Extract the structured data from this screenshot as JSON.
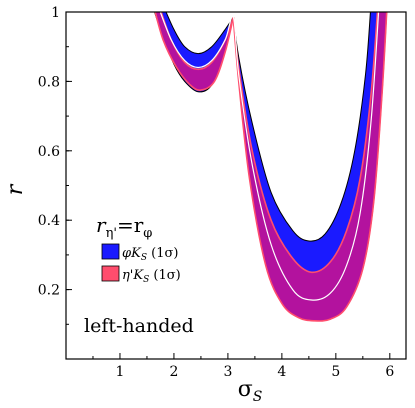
{
  "chart_data": {
    "type": "area",
    "xlabel": "σ",
    "xlabel_sub": "S",
    "ylabel": "r",
    "xlim": [
      0,
      6.3
    ],
    "ylim": [
      0,
      1
    ],
    "xticks": [
      "1",
      "2",
      "3",
      "4",
      "5",
      "6"
    ],
    "yticks": [
      "0.2",
      "0.4",
      "0.6",
      "0.8",
      "1"
    ],
    "legend": {
      "title_main": "r",
      "title_sub1": "η'",
      "title_eq": "=r",
      "title_sub2": "φ",
      "placement": "middle-left",
      "entries": [
        {
          "label_main": "φK",
          "label_sub": "S",
          "label_tail": " (1σ)",
          "color": "#1a1aff"
        },
        {
          "label_main": "η'K",
          "label_sub": "S",
          "label_tail": " (1σ)",
          "color": "#ff4d6d"
        }
      ]
    },
    "annotation": "left-handed",
    "series": [
      {
        "name": "φK_S (1σ)",
        "color": "#1a1aff",
        "left_lobe": {
          "upper": [
            [
              1.8,
              1.02
            ],
            [
              2.0,
              0.95
            ],
            [
              2.2,
              0.9
            ],
            [
              2.45,
              0.88
            ],
            [
              2.7,
              0.9
            ],
            [
              2.95,
              0.95
            ],
            [
              3.1,
              0.985
            ]
          ],
          "lower": [
            [
              1.6,
              1.02
            ],
            [
              1.75,
              0.95
            ],
            [
              2.0,
              0.85
            ],
            [
              2.2,
              0.8
            ],
            [
              2.45,
              0.77
            ],
            [
              2.7,
              0.79
            ],
            [
              2.9,
              0.87
            ],
            [
              3.1,
              0.985
            ]
          ]
        },
        "right_lobe": {
          "upper": [
            [
              3.1,
              0.985
            ],
            [
              3.2,
              0.87
            ],
            [
              3.45,
              0.68
            ],
            [
              3.8,
              0.48
            ],
            [
              4.2,
              0.37
            ],
            [
              4.5,
              0.34
            ],
            [
              4.8,
              0.36
            ],
            [
              5.1,
              0.45
            ],
            [
              5.35,
              0.6
            ],
            [
              5.55,
              0.82
            ],
            [
              5.65,
              1.02
            ]
          ],
          "lower": [
            [
              3.1,
              0.985
            ],
            [
              3.2,
              0.82
            ],
            [
              3.4,
              0.55
            ],
            [
              3.7,
              0.3
            ],
            [
              4.0,
              0.17
            ],
            [
              4.3,
              0.13
            ],
            [
              4.6,
              0.12
            ],
            [
              4.9,
              0.12
            ],
            [
              5.2,
              0.15
            ],
            [
              5.5,
              0.26
            ],
            [
              5.7,
              0.45
            ],
            [
              5.85,
              0.75
            ],
            [
              5.95,
              1.02
            ]
          ]
        }
      },
      {
        "name": "η'K_S (1σ)",
        "color": "#ff4d6d",
        "left_lobe": {
          "upper": [
            [
              1.72,
              1.02
            ],
            [
              1.95,
              0.92
            ],
            [
              2.2,
              0.855
            ],
            [
              2.45,
              0.835
            ],
            [
              2.7,
              0.855
            ],
            [
              2.95,
              0.92
            ],
            [
              3.1,
              0.985
            ]
          ],
          "lower": [
            [
              1.62,
              1.02
            ],
            [
              1.8,
              0.92
            ],
            [
              2.05,
              0.84
            ],
            [
              2.3,
              0.79
            ],
            [
              2.5,
              0.775
            ],
            [
              2.75,
              0.8
            ],
            [
              2.95,
              0.885
            ],
            [
              3.1,
              0.985
            ]
          ]
        },
        "right_lobe": {
          "upper": [
            [
              3.1,
              0.985
            ],
            [
              3.2,
              0.84
            ],
            [
              3.45,
              0.6
            ],
            [
              3.8,
              0.4
            ],
            [
              4.2,
              0.29
            ],
            [
              4.55,
              0.25
            ],
            [
              4.9,
              0.28
            ],
            [
              5.2,
              0.37
            ],
            [
              5.45,
              0.52
            ],
            [
              5.65,
              0.76
            ],
            [
              5.78,
              1.02
            ]
          ],
          "lower": [
            [
              3.1,
              0.985
            ],
            [
              3.2,
              0.8
            ],
            [
              3.4,
              0.52
            ],
            [
              3.7,
              0.27
            ],
            [
              4.0,
              0.16
            ],
            [
              4.3,
              0.12
            ],
            [
              4.6,
              0.11
            ],
            [
              4.9,
              0.115
            ],
            [
              5.2,
              0.15
            ],
            [
              5.5,
              0.26
            ],
            [
              5.7,
              0.45
            ],
            [
              5.85,
              0.75
            ],
            [
              5.95,
              1.02
            ]
          ]
        }
      }
    ],
    "central_curve": {
      "name": "central",
      "color": "#ffffff",
      "points": [
        [
          1.7,
          1.02
        ],
        [
          1.95,
          0.92
        ],
        [
          2.2,
          0.86
        ],
        [
          2.45,
          0.84
        ],
        [
          2.7,
          0.86
        ],
        [
          2.95,
          0.92
        ],
        [
          3.1,
          0.985
        ],
        [
          3.2,
          0.82
        ],
        [
          3.45,
          0.56
        ],
        [
          3.8,
          0.33
        ],
        [
          4.2,
          0.2
        ],
        [
          4.55,
          0.17
        ],
        [
          4.9,
          0.19
        ],
        [
          5.2,
          0.27
        ],
        [
          5.45,
          0.42
        ],
        [
          5.65,
          0.68
        ],
        [
          5.8,
          1.02
        ]
      ]
    },
    "overlap_color": "#b3129e"
  }
}
